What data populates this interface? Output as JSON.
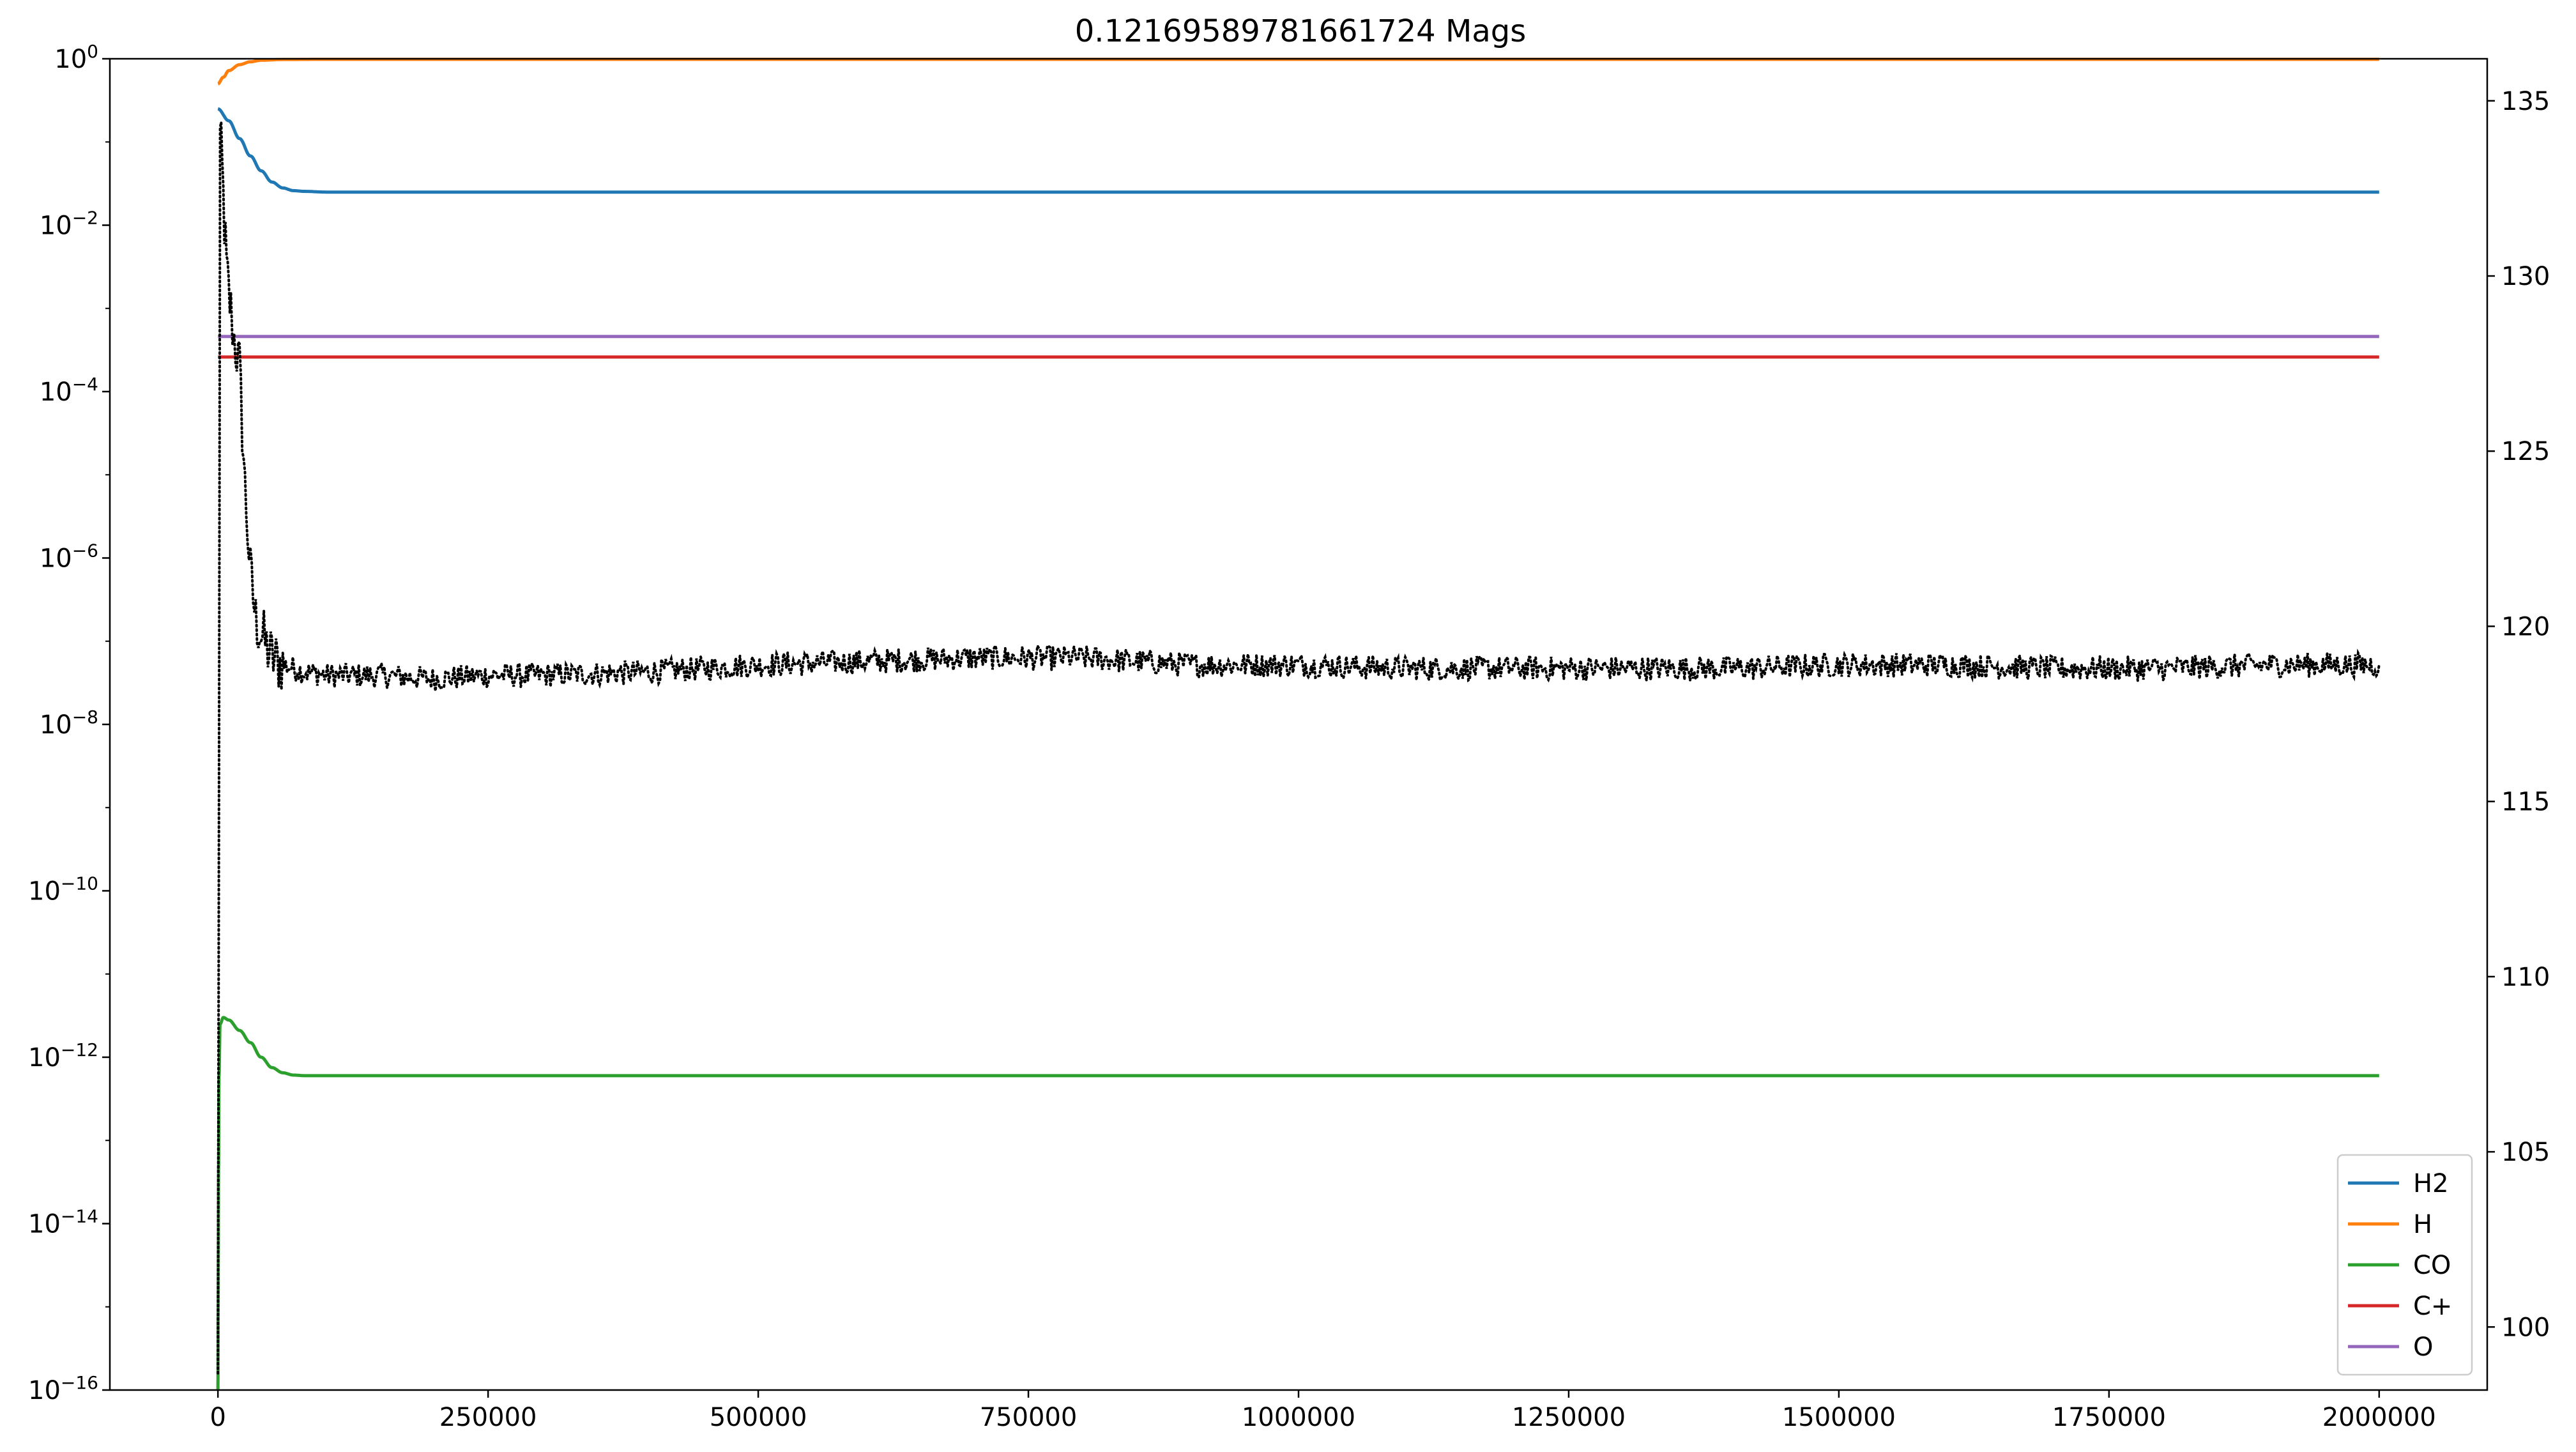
{
  "chart_data": {
    "type": "line",
    "title": "0.12169589781661724 Mags",
    "xlabel": "",
    "ylabel": "",
    "yscale": "log",
    "xlim": [
      -100000,
      2100000
    ],
    "ylim": [
      1e-16,
      1
    ],
    "y2lim": [
      98.2,
      136.2
    ],
    "grid": false,
    "legend_position": "lower-right",
    "x_ticks": [
      0,
      250000,
      500000,
      750000,
      1000000,
      1250000,
      1500000,
      1750000,
      2000000
    ],
    "x_tick_labels": [
      "0",
      "250000",
      "500000",
      "750000",
      "1000000",
      "1250000",
      "1500000",
      "1750000",
      "2000000"
    ],
    "y_ticks": [
      {
        "base": "10",
        "exp": "0",
        "value": 1
      },
      {
        "base": "10",
        "exp": "−2",
        "value": 0.01
      },
      {
        "base": "10",
        "exp": "−4",
        "value": 0.0001
      },
      {
        "base": "10",
        "exp": "−6",
        "value": 1e-06
      },
      {
        "base": "10",
        "exp": "−8",
        "value": 1e-08
      },
      {
        "base": "10",
        "exp": "−10",
        "value": 1e-10
      },
      {
        "base": "10",
        "exp": "−12",
        "value": 1e-12
      },
      {
        "base": "10",
        "exp": "−14",
        "value": 1e-14
      },
      {
        "base": "10",
        "exp": "−16",
        "value": 1e-16
      }
    ],
    "y2_ticks": [
      100,
      105,
      110,
      115,
      120,
      125,
      130,
      135
    ],
    "y2_tick_labels": [
      "100",
      "105",
      "110",
      "115",
      "120",
      "125",
      "130",
      "135"
    ],
    "series": [
      {
        "name": "H2",
        "color": "#1f77b4",
        "axis": "left",
        "x": [
          0,
          10000,
          20000,
          30000,
          40000,
          50000,
          60000,
          70000,
          80000,
          100000,
          150000,
          2000000
        ],
        "y": [
          0.25,
          0.18,
          0.11,
          0.068,
          0.045,
          0.033,
          0.028,
          0.026,
          0.0255,
          0.025,
          0.025,
          0.025
        ]
      },
      {
        "name": "H",
        "color": "#ff7f0e",
        "axis": "left",
        "x": [
          0,
          5000,
          10000,
          20000,
          30000,
          40000,
          60000,
          100000,
          2000000
        ],
        "y": [
          0.5,
          0.6,
          0.72,
          0.85,
          0.92,
          0.96,
          0.98,
          0.985,
          0.985
        ]
      },
      {
        "name": "CO",
        "color": "#2ca02c",
        "axis": "left",
        "x": [
          0,
          200,
          600,
          1000,
          2000,
          5000,
          10000,
          20000,
          30000,
          40000,
          50000,
          60000,
          70000,
          80000,
          100000,
          2000000
        ],
        "y": [
          1e-16,
          1e-15,
          5e-14,
          6e-13,
          2.5e-12,
          3e-12,
          2.8e-12,
          2.1e-12,
          1.5e-12,
          1e-12,
          7.5e-13,
          6.5e-13,
          6.1e-13,
          6e-13,
          6e-13,
          6e-13
        ]
      },
      {
        "name": "C+",
        "color": "#d62728",
        "axis": "left",
        "x": [
          0,
          2000000
        ],
        "y": [
          0.00026,
          0.00026
        ]
      },
      {
        "name": "O",
        "color": "#9467bd",
        "axis": "left",
        "x": [
          0,
          2000000
        ],
        "y": [
          0.00046,
          0.00046
        ]
      },
      {
        "name": "",
        "color": "#000000",
        "axis": "right",
        "style": "dotted",
        "x": [
          0,
          2000,
          4000,
          6000,
          8000,
          10000,
          12000,
          15000,
          20000,
          25000,
          30000,
          35000,
          40000,
          45000,
          50000,
          60000,
          80000,
          100000,
          150000,
          200000,
          250000,
          300000,
          400000,
          500000,
          600000,
          700000,
          800000,
          900000,
          1000000,
          1100000,
          1200000,
          1300000,
          1400000,
          1500000,
          1600000,
          1700000,
          1800000,
          1900000,
          2000000
        ],
        "y": [
          98.4,
          134.0,
          133.0,
          131.5,
          130.2,
          129.5,
          129.0,
          128.2,
          127.4,
          124.0,
          121.5,
          120.2,
          119.8,
          119.4,
          119.1,
          118.9,
          118.7,
          118.6,
          118.6,
          118.5,
          118.6,
          118.6,
          118.7,
          118.9,
          119.0,
          119.1,
          119.1,
          118.9,
          118.9,
          118.8,
          118.8,
          118.8,
          118.8,
          118.9,
          118.9,
          118.8,
          118.8,
          118.9,
          118.9
        ]
      }
    ]
  }
}
